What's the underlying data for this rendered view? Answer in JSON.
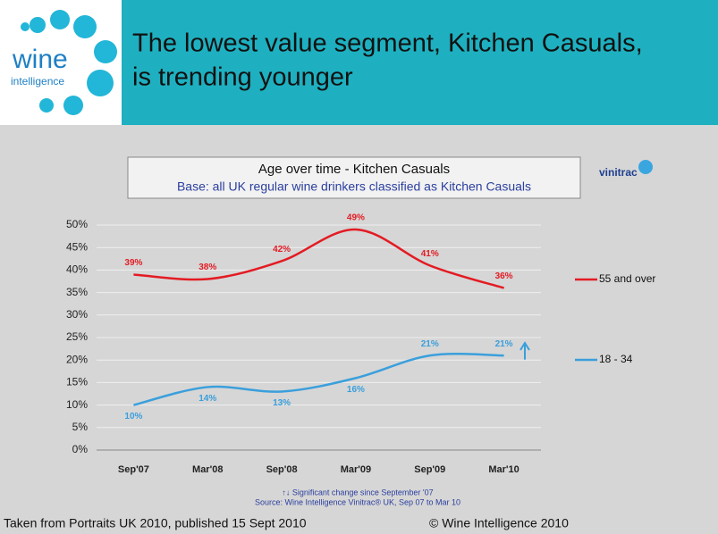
{
  "header": {
    "title_lines": [
      "The lowest value segment, Kitchen Casuals,",
      "is trending younger"
    ],
    "logo_word": "wine",
    "logo_sub": "intelligence"
  },
  "chart_data": {
    "type": "line",
    "title": "Age over time - Kitchen Casuals",
    "subtitle": "Base: all UK regular wine drinkers classified as Kitchen Casuals",
    "brand": "vinitrac",
    "categories": [
      "Sep'07",
      "Mar'08",
      "Sep'08",
      "Mar'09",
      "Sep'09",
      "Mar'10"
    ],
    "series": [
      {
        "name": "55 and over",
        "color": "#e31b23",
        "values": [
          39,
          38,
          42,
          49,
          41,
          36
        ],
        "value_labels": [
          "39%",
          "38%",
          "42%",
          "49%",
          "41%",
          "36%"
        ]
      },
      {
        "name": "18 - 34",
        "color": "#3a9fdc",
        "values": [
          10,
          14,
          13,
          16,
          21,
          21
        ],
        "value_labels": [
          "10%",
          "14%",
          "13%",
          "16%",
          "21%",
          "21%"
        ]
      }
    ],
    "ylim": [
      0,
      50
    ],
    "yticks": [
      {
        "value": 0,
        "label": "0%"
      },
      {
        "value": 5,
        "label": "5%"
      },
      {
        "value": 10,
        "label": "10%"
      },
      {
        "value": 15,
        "label": "15%"
      },
      {
        "value": 20,
        "label": "20%"
      },
      {
        "value": 25,
        "label": "25%"
      },
      {
        "value": 30,
        "label": "30%"
      },
      {
        "value": 35,
        "label": "35%"
      },
      {
        "value": 40,
        "label": "40%"
      },
      {
        "value": 45,
        "label": "45%"
      },
      {
        "value": 50,
        "label": "50%"
      }
    ],
    "grid": true,
    "legend": "right",
    "notes": [
      "↑↓ Significant change since September '07",
      "Source: Wine Intelligence Vinitrac® UK, Sep 07 to Mar 10"
    ]
  },
  "footer": {
    "left": "Taken from Portraits UK 2010, published 15 Sept 2010",
    "right": "© Wine Intelligence 2010"
  }
}
